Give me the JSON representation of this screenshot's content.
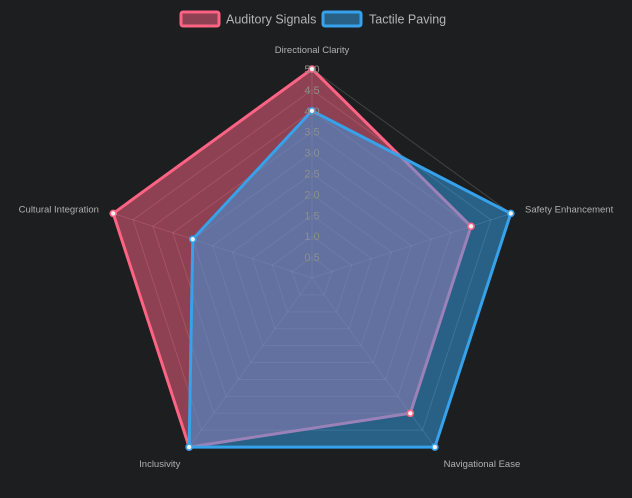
{
  "chart_data": {
    "type": "radar",
    "labels": [
      "Directional Clarity",
      "Safety Enhancement",
      "Navigational Ease",
      "Inclusivity",
      "Cultural Integration"
    ],
    "r_range": [
      0,
      5
    ],
    "ticks": [
      "0.5",
      "1.0",
      "1.5",
      "2.0",
      "2.5",
      "3.0",
      "3.5",
      "4.0",
      "4.5",
      "5.0"
    ],
    "tick_values": [
      0.5,
      1.0,
      1.5,
      2.0,
      2.5,
      3.0,
      3.5,
      4.0,
      4.5,
      5.0
    ],
    "grid": true,
    "legend_position": "top",
    "series": [
      {
        "name": "Auditory Signals",
        "values": [
          5,
          4,
          4,
          5,
          5
        ],
        "border_color": "#ff6384",
        "fill_color": "rgba(255, 99, 132, 0.5)"
      },
      {
        "name": "Tactile Paving",
        "values": [
          4,
          5,
          5,
          5,
          3
        ],
        "border_color": "#36a2eb",
        "fill_color": "rgba(54, 162, 235, 0.5)"
      }
    ]
  }
}
